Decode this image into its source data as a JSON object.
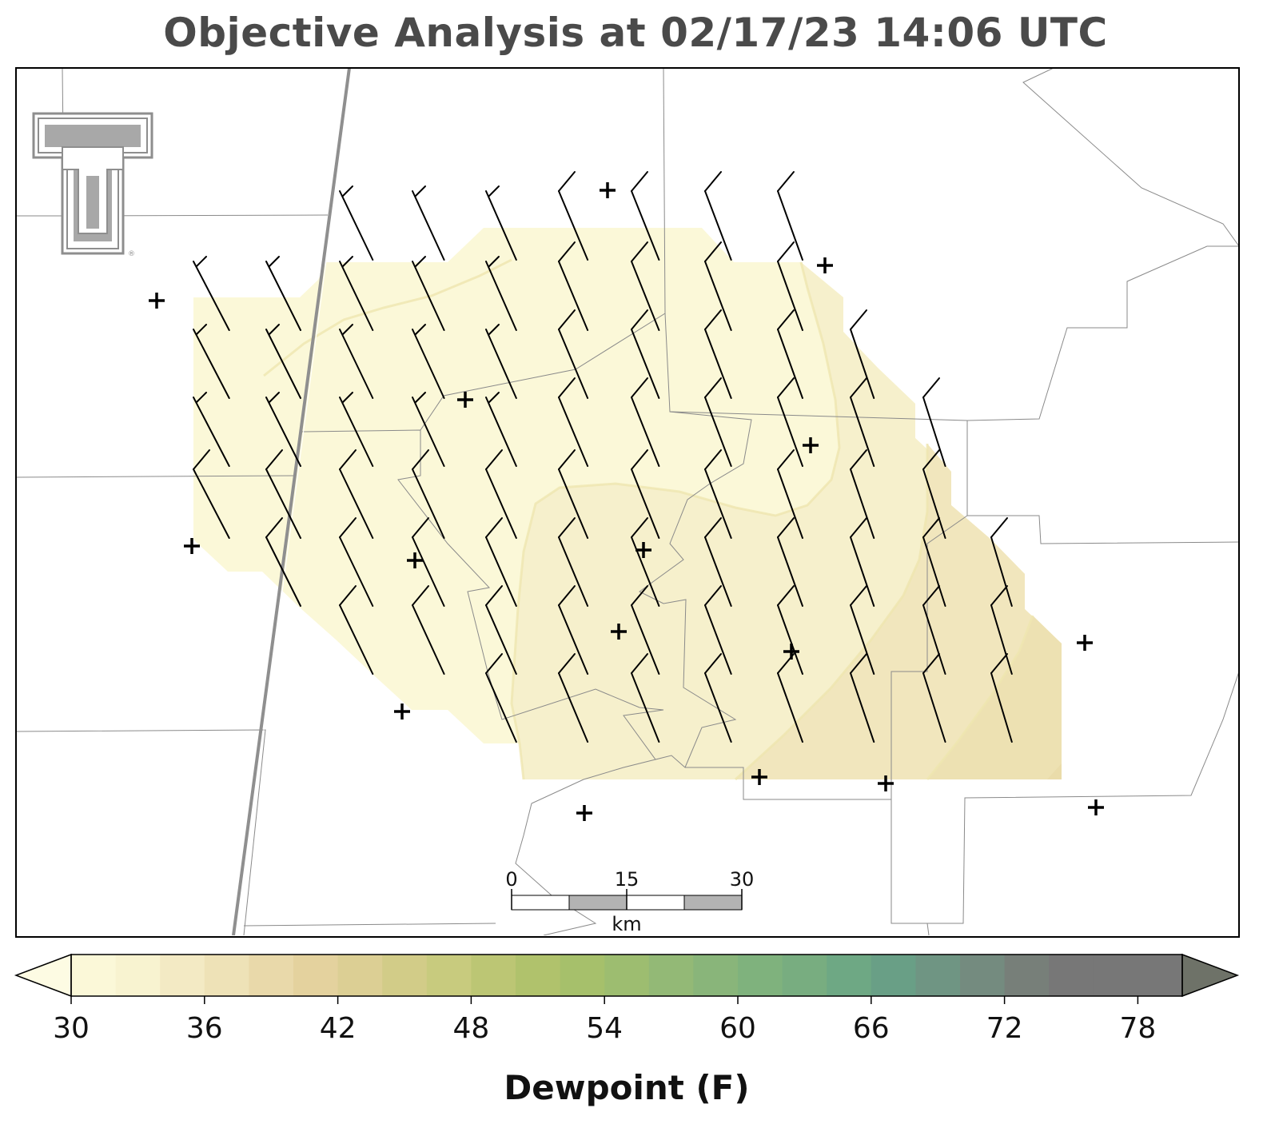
{
  "title": "Objective Analysis at 02/17/23 14:06 UTC",
  "colorbar": {
    "label": "Dewpoint (F)",
    "ticks": [
      "30",
      "36",
      "42",
      "48",
      "54",
      "60",
      "66",
      "72",
      "78"
    ],
    "min": 30,
    "max": 80,
    "step": 2,
    "colors": [
      "#fbf8d8",
      "#f8f3d0",
      "#f3eac4",
      "#eee2b7",
      "#e9d9aa",
      "#e4d29e",
      "#dccf94",
      "#d2cc88",
      "#c8cb7e",
      "#bcc674",
      "#b0c26c",
      "#a6c06b",
      "#9dbd70",
      "#93b976",
      "#89b57a",
      "#7fb27d",
      "#78ad80",
      "#6ea884",
      "#699f86",
      "#6f9583",
      "#748b7f",
      "#777f79",
      "#777777"
    ],
    "over_color": "#6e7268",
    "under_color": "#fdfbe3"
  },
  "scale_bar": {
    "labels": [
      "0",
      "15",
      "30"
    ],
    "unit": "km"
  },
  "logo": {
    "text": "TT",
    "mark": "®"
  },
  "analysis_field": {
    "variable": "Dewpoint",
    "units": "F",
    "shaded_range_F": [
      30,
      42
    ]
  },
  "map_features": [
    "county-boundaries",
    "state-border",
    "wind-barbs",
    "station-markers"
  ]
}
